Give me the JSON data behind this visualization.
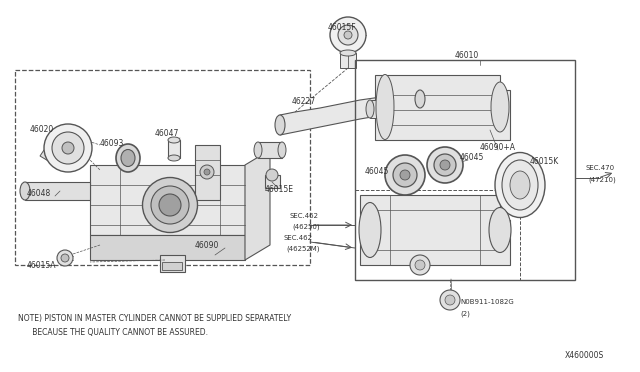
{
  "bg_color": "#ffffff",
  "line_color": "#555555",
  "text_color": "#333333",
  "note_line1": "NOTE) PISTON IN MASTER CYLINDER CANNOT BE SUPPLIED SEPARATELY",
  "note_line2": "      BECAUSE THE QUALITY CANNOT BE ASSURED.",
  "diagram_id": "X460000S",
  "figsize": [
    6.4,
    3.72
  ],
  "dpi": 100
}
